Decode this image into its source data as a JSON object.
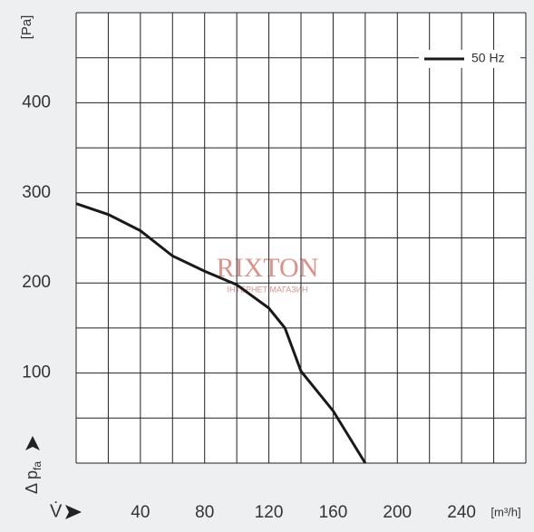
{
  "chart_data": {
    "type": "line",
    "y_unit": "[Pa]",
    "ylabel": "Δ p",
    "ylabel_sub": "fa",
    "xlabel": "V̇",
    "x_unit": "[m³/h]",
    "x": [
      0,
      20,
      40,
      60,
      80,
      100,
      120,
      130,
      140,
      160,
      180
    ],
    "series": [
      {
        "name": "50 Hz",
        "color": "#1a1a1a",
        "values": [
          288,
          276,
          258,
          230,
          213,
          198,
          172,
          150,
          102,
          58,
          0
        ]
      }
    ],
    "xlim": [
      0,
      280
    ],
    "xticks": [
      40,
      80,
      120,
      160,
      200,
      240
    ],
    "ylim": [
      0,
      500
    ],
    "yticks": [
      100,
      200,
      300,
      400
    ],
    "xgrid": [
      0,
      20,
      40,
      60,
      80,
      100,
      120,
      140,
      160,
      180,
      200,
      220,
      240,
      260,
      280
    ],
    "ygrid": [
      0,
      50,
      100,
      150,
      200,
      250,
      300,
      350,
      400,
      450,
      500
    ],
    "grid": true,
    "legend": "top-right",
    "watermark": "RIXTON",
    "watermark_sub": "ІНТЕРНЕТ МАГАЗИН"
  }
}
